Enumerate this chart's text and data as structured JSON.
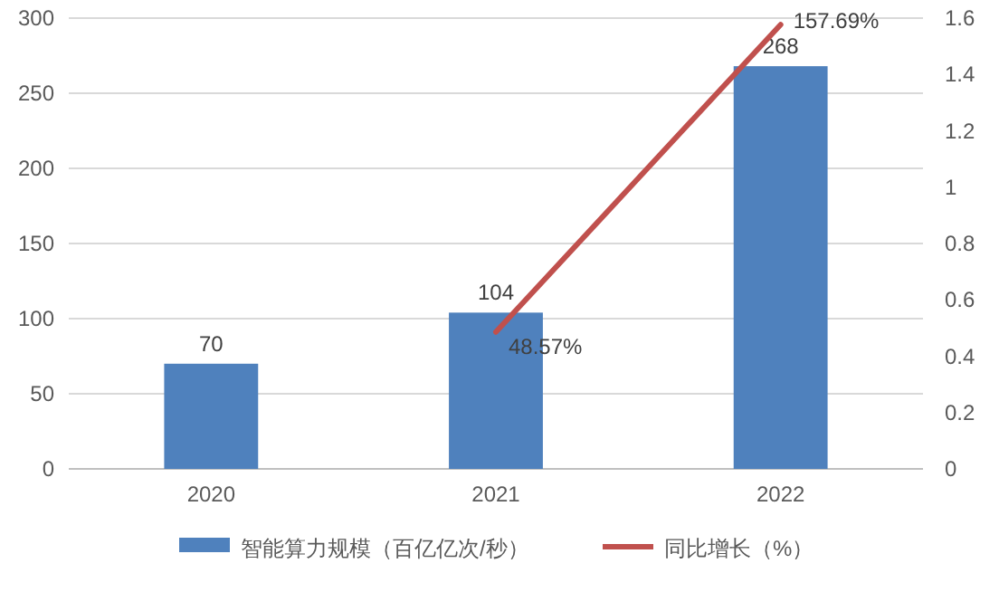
{
  "chart_data": {
    "type": "bar",
    "categories": [
      "2020",
      "2021",
      "2022"
    ],
    "series": [
      {
        "name": "智能算力规模（百亿亿次/秒）",
        "color": "#4f81bd",
        "values": [
          70,
          104,
          268
        ],
        "value_labels": [
          "70",
          "104",
          "268"
        ]
      },
      {
        "name": "同比增长（%）",
        "type": "line",
        "axis": "y2",
        "color": "#c0504d",
        "values": [
          null,
          0.4857,
          1.5769
        ],
        "value_labels": [
          null,
          "48.57%",
          "157.69%"
        ]
      }
    ],
    "ylim": [
      0,
      300
    ],
    "yticks": [
      0,
      50,
      100,
      150,
      200,
      250,
      300
    ],
    "y2lim": [
      0,
      1.6
    ],
    "y2ticks": [
      0,
      0.2,
      0.4,
      0.6,
      0.8,
      1,
      1.2,
      1.4,
      1.6
    ],
    "grid": "y",
    "legend": "bottom",
    "marker": "none",
    "line_style": "solid"
  }
}
